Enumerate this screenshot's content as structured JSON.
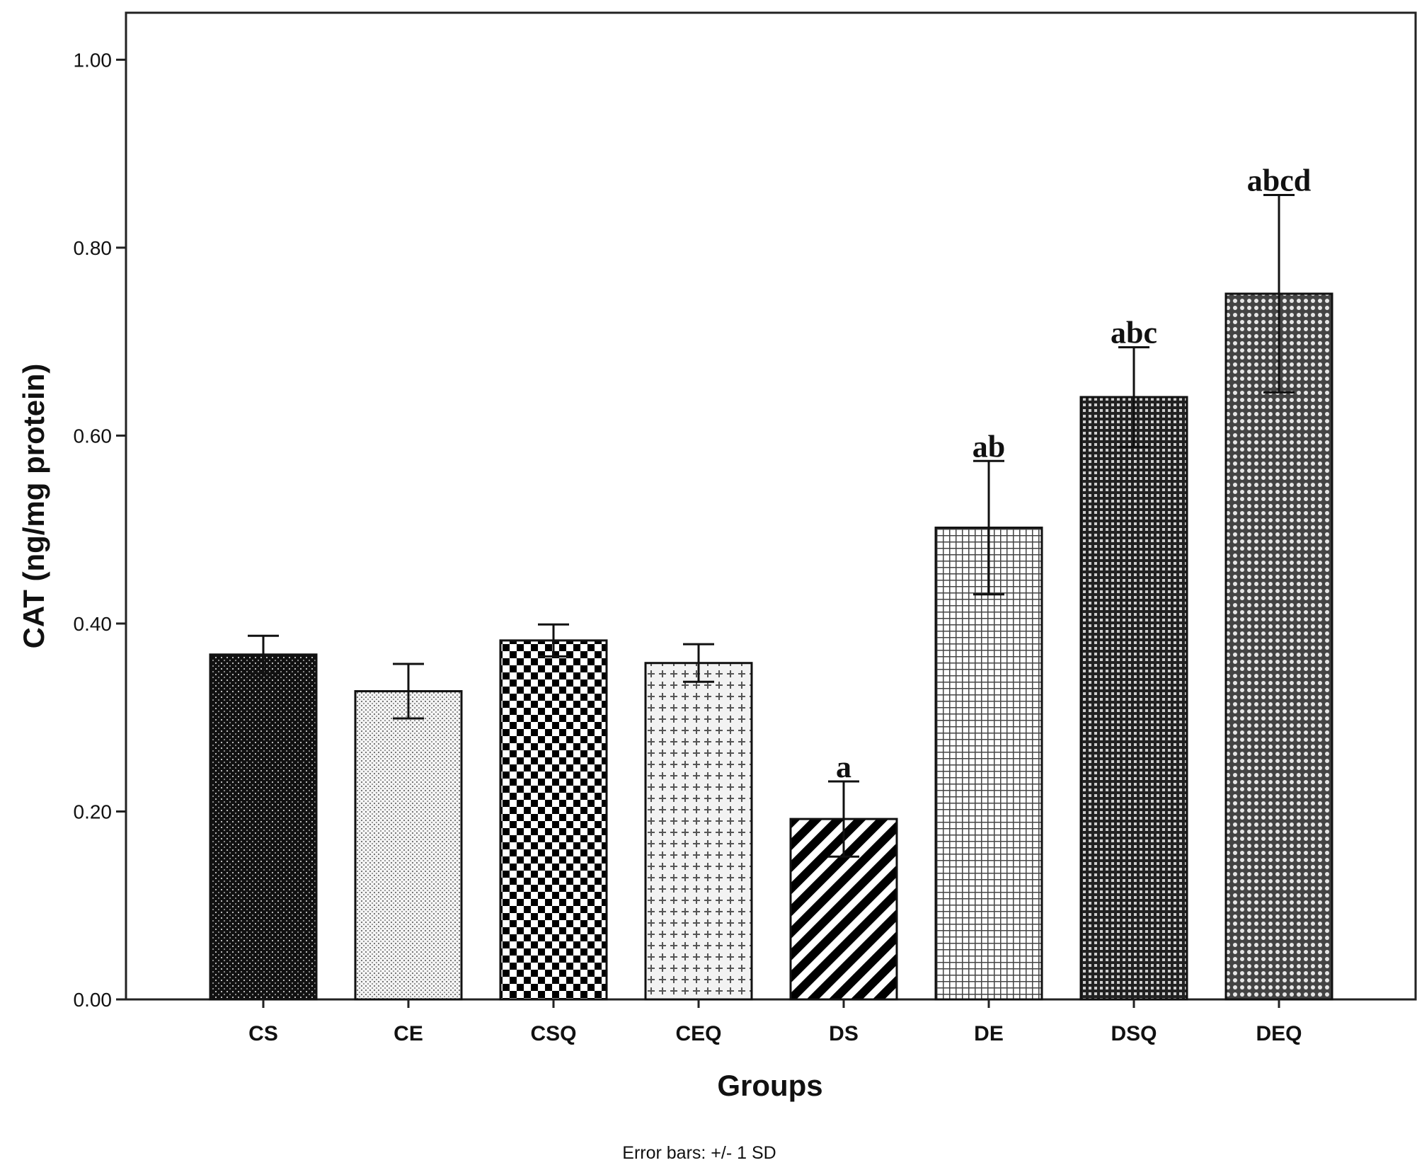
{
  "chart_data": {
    "type": "bar",
    "title": "",
    "xlabel": "Groups",
    "ylabel": "CAT (ng/mg protein)",
    "ylim": [
      0,
      1.05
    ],
    "yticks": [
      0.0,
      0.2,
      0.4,
      0.6,
      0.8,
      1.0
    ],
    "ytick_labels": [
      "0.00",
      "0.20",
      "0.40",
      "0.60",
      "0.80",
      "1.00"
    ],
    "grid": false,
    "categories": [
      "CS",
      "CE",
      "CSQ",
      "CEQ",
      "DS",
      "DE",
      "DSQ",
      "DEQ"
    ],
    "values": [
      0.367,
      0.328,
      0.382,
      0.358,
      0.192,
      0.502,
      0.641,
      0.751
    ],
    "error_sd": [
      0.02,
      0.029,
      0.017,
      0.02,
      0.04,
      0.071,
      0.053,
      0.105
    ],
    "annotations": [
      "",
      "",
      "",
      "",
      "a",
      "ab",
      "abc",
      "abcd"
    ],
    "patterns": [
      "dark-stipple",
      "light-dots",
      "checker",
      "plus-grid",
      "diagonal-stripes",
      "fine-grid",
      "dark-grid",
      "dense-dots"
    ],
    "footnote": "Error bars: +/- 1 SD"
  }
}
